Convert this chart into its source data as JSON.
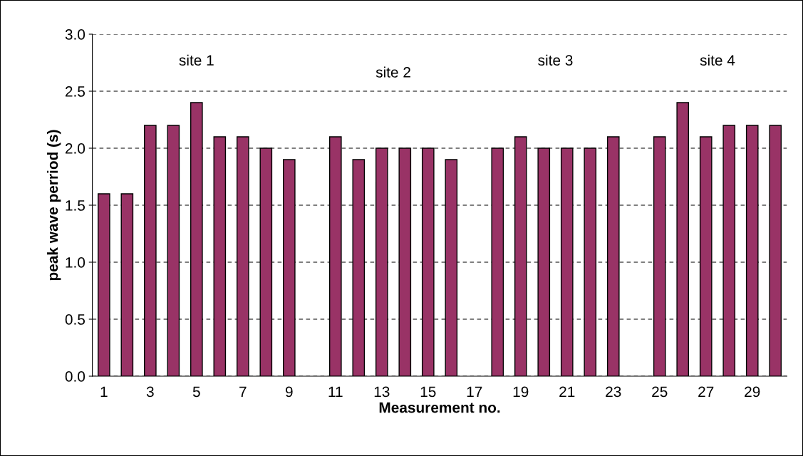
{
  "chart_data": {
    "type": "bar",
    "xlabel": "Measurement no.",
    "ylabel": "peak wave perriod (s)",
    "categories": [
      "1",
      null,
      "3",
      null,
      "5",
      null,
      "7",
      null,
      "9",
      null,
      "11",
      null,
      "13",
      null,
      "15",
      null,
      "17",
      null,
      "19",
      null,
      "21",
      null,
      "23",
      null,
      "25",
      null,
      "27",
      null,
      "29",
      null
    ],
    "values": [
      1.6,
      1.6,
      2.2,
      2.2,
      2.4,
      2.1,
      2.1,
      2.0,
      1.9,
      null,
      2.1,
      1.9,
      2.0,
      2.0,
      2.0,
      1.9,
      null,
      2.0,
      2.1,
      2.0,
      2.0,
      2.0,
      2.1,
      null,
      2.1,
      2.4,
      2.1,
      2.2,
      2.2,
      2.2
    ],
    "color": "#993366",
    "ylim": [
      0,
      3
    ],
    "yticks": [
      {
        "value": 0,
        "label": "0.0"
      },
      {
        "value": 0.5,
        "label": "0.5"
      },
      {
        "value": 1,
        "label": "1.0"
      },
      {
        "value": 1.5,
        "label": "1.5"
      },
      {
        "value": 2,
        "label": "2.0"
      },
      {
        "value": 2.5,
        "label": "2.5"
      },
      {
        "value": 3,
        "label": "3.0"
      }
    ],
    "grid": "y",
    "annotations": [
      "site 1",
      "site 2",
      "site 3",
      "site 4"
    ]
  }
}
